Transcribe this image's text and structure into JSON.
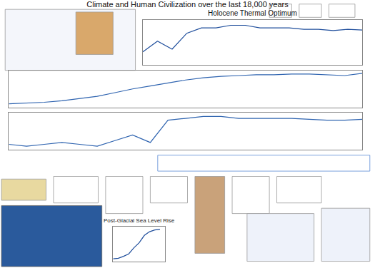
{
  "title": "Climate and Human Civilization over the last 18,000 years",
  "chart_data": [
    {
      "type": "line",
      "annotations": [
        "Holocene Thermal Optimum"
      ],
      "x": [
        -13000,
        -12000,
        -11000,
        -10000,
        -9000,
        -8000,
        -7000,
        -6000,
        -5000,
        -4000,
        -3000,
        -2000,
        -1000,
        0,
        1000,
        2000
      ],
      "series": [
        {
          "color": "#1f4e9c",
          "values": [
            -40,
            -36,
            -39,
            -33,
            -31,
            -31,
            -30,
            -30,
            -31,
            -31,
            -31,
            -31.5,
            -31.5,
            -32,
            -31.5,
            -31.8
          ]
        }
      ],
      "xlim": [
        -13000,
        2000
      ],
      "ylim": [
        -45,
        -28
      ],
      "tick_labels": false,
      "grid": false
    },
    {
      "type": "line",
      "x": [
        -18000,
        -17000,
        -16000,
        -15000,
        -14000,
        -13000,
        -12000,
        -11000,
        -10000,
        -9000,
        -8000,
        -7000,
        -6000,
        -5000,
        -4000,
        -3000,
        -2000,
        -1000,
        0,
        1000,
        2000
      ],
      "series": [
        {
          "color": "#2f64b0",
          "values": [
            -4,
            -3.9,
            -3.8,
            -3.6,
            -3.3,
            -3,
            -2.5,
            -2,
            -1.6,
            -1.2,
            -0.8,
            -0.5,
            -0.3,
            -0.2,
            -0.1,
            -0.1,
            0,
            0,
            -0.1,
            -0.2,
            0.1
          ]
        }
      ],
      "xlim": [
        -18000,
        2000
      ],
      "ylim": [
        -4.5,
        0.5
      ],
      "tick_labels": false,
      "grid": false
    },
    {
      "type": "line",
      "x": [
        -18000,
        -17000,
        -16000,
        -15000,
        -14000,
        -13000,
        -12000,
        -11000,
        -10000,
        -9000,
        -8000,
        -7000,
        -6000,
        -5000,
        -4000,
        -3000,
        -2000,
        -1000,
        0,
        1000,
        2000
      ],
      "series": [
        {
          "color": "#2f64b0",
          "values": [
            -45,
            -46,
            -45,
            -44,
            -45,
            -46,
            -43,
            -40,
            -44,
            -32,
            -31,
            -30,
            -30,
            -31,
            -31,
            -31,
            -31,
            -31.5,
            -32,
            -32,
            -31.5
          ]
        }
      ],
      "xlim": [
        -18000,
        2000
      ],
      "ylim": [
        -48,
        -28
      ],
      "tick_labels": false,
      "grid": false
    },
    {
      "type": "line",
      "title": "Post-Glacial Sea Level Rise",
      "x": [
        -18000,
        -16000,
        -14000,
        -12000,
        -10000,
        -8000,
        -6000,
        -4000,
        -2000,
        0
      ],
      "series": [
        {
          "color": "#1f4e9c",
          "values": [
            -120,
            -118,
            -110,
            -100,
            -75,
            -55,
            -25,
            -10,
            -3,
            0
          ]
        }
      ],
      "xlim": [
        -18000,
        2000
      ],
      "ylim": [
        -130,
        10
      ],
      "tick_labels": false,
      "grid": false
    }
  ]
}
